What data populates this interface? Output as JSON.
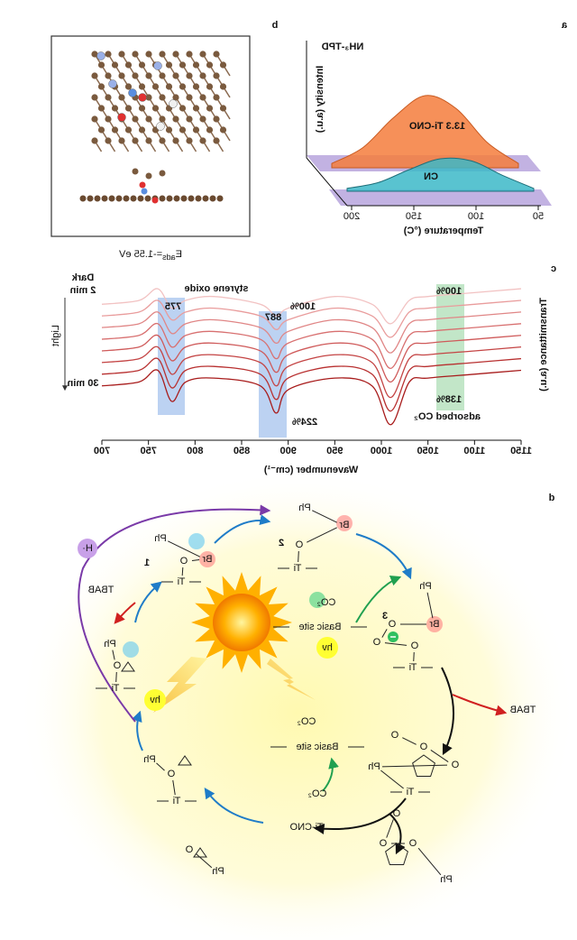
{
  "panel_labels": [
    "a",
    "b",
    "c",
    "d"
  ],
  "chart_data": [
    {
      "type": "area",
      "annotation": "NH₃-TPD",
      "x_label": "Temperature (°C)",
      "y_label": "Intensity (a.u.)",
      "x": [
        50,
        75,
        100,
        125,
        150,
        175,
        200
      ],
      "xlim": [
        50,
        200
      ],
      "xticks": [
        50,
        100,
        150,
        200
      ],
      "ylim": [
        0,
        110
      ],
      "series": [
        {
          "name": "13.3 Ti-CNO",
          "color": "#f47c3c",
          "values": [
            6,
            35,
            82,
            100,
            70,
            28,
            6
          ]
        },
        {
          "name": "CN",
          "color": "#3cb8c8",
          "values": [
            4,
            22,
            42,
            45,
            30,
            12,
            4
          ]
        }
      ]
    },
    {
      "type": "line",
      "x_label": "Wavenumber (cm⁻¹)",
      "y_label": "Transmittance (a.u.)",
      "x": [
        1150,
        1100,
        1050,
        1030,
        1010,
        990,
        950,
        900,
        887,
        870,
        820,
        790,
        775,
        760,
        740,
        700
      ],
      "xlim": [
        1150,
        700
      ],
      "xticks": [
        1150,
        1100,
        1050,
        1000,
        950,
        900,
        850,
        800,
        750,
        700
      ],
      "ylim": [
        10,
        95
      ],
      "annotations": {
        "styrene_oxide": "styrene oxide",
        "band_775": "775",
        "band_887": "887",
        "ratio_887_dark": "100%",
        "ratio_887_light": "224%",
        "ratio_co2_dark": "100%",
        "ratio_co2_light": "138%",
        "co2_label": "adsorbed CO₂",
        "light": "Light"
      },
      "series": [
        {
          "name": "Dark",
          "color": "#f2c2c2",
          "values": [
            88,
            86,
            84,
            82,
            70,
            80,
            84,
            78,
            74,
            80,
            84,
            82,
            78,
            88,
            82,
            80
          ]
        },
        {
          "name": "2 min",
          "color": "#e99c9c",
          "values": [
            82,
            80,
            78,
            76,
            63,
            74,
            78,
            72,
            67,
            74,
            78,
            76,
            72,
            82,
            76,
            74
          ]
        },
        {
          "color": "#e08686",
          "values": [
            76,
            74,
            72,
            70,
            55,
            68,
            72,
            66,
            60,
            68,
            72,
            70,
            65,
            76,
            70,
            68
          ]
        },
        {
          "color": "#d87070",
          "values": [
            70,
            68,
            66,
            64,
            47,
            62,
            66,
            60,
            52,
            62,
            66,
            64,
            58,
            70,
            64,
            62
          ]
        },
        {
          "color": "#cf5a5a",
          "values": [
            64,
            62,
            60,
            58,
            40,
            56,
            60,
            54,
            45,
            56,
            60,
            58,
            51,
            64,
            58,
            56
          ]
        },
        {
          "color": "#c44444",
          "values": [
            58,
            56,
            54,
            52,
            32,
            50,
            54,
            48,
            38,
            50,
            54,
            52,
            44,
            58,
            52,
            50
          ]
        },
        {
          "color": "#b83030",
          "values": [
            52,
            50,
            48,
            46,
            25,
            44,
            48,
            42,
            31,
            44,
            48,
            46,
            37,
            52,
            46,
            44
          ]
        },
        {
          "name": "30 min",
          "color": "#a81c1c",
          "values": [
            46,
            44,
            42,
            40,
            18,
            38,
            42,
            36,
            24,
            38,
            42,
            40,
            30,
            46,
            40,
            38
          ]
        }
      ]
    }
  ],
  "panel_b": {
    "energy_symbol": "E",
    "energy_subscript": "ads",
    "energy_value": "=-1.55 eV"
  },
  "panel_d": {
    "catalyst": "Ti-CNO",
    "tbab": [
      "TBAB",
      "TBAB"
    ],
    "h_radical": "H·",
    "hv": [
      "hν",
      "hν"
    ],
    "basic_site": [
      "Basic site",
      "Basic site"
    ],
    "co2": [
      "CO₂",
      "CO₂",
      "CO₂"
    ],
    "steps": [
      "1",
      "2",
      "3"
    ],
    "structures": [
      [
        "Ph",
        "Br",
        "O",
        "Ti"
      ],
      [
        "Ph",
        "Br",
        "O",
        "Ti"
      ],
      [
        "Ph",
        "Br",
        "O",
        "O",
        "O",
        "Ti"
      ],
      [
        "O",
        "O",
        "O",
        "Ph",
        "Ti"
      ],
      [
        "O",
        "O",
        "O",
        "Ph"
      ],
      [
        "Ph",
        "O",
        "Ti"
      ],
      [
        "Ph",
        "O"
      ],
      [
        "Ph",
        "O",
        "Ti"
      ]
    ]
  }
}
